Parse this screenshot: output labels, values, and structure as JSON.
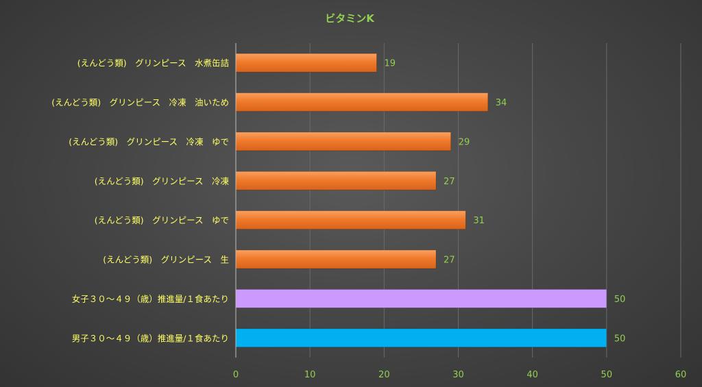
{
  "chart_data": {
    "type": "bar",
    "orientation": "horizontal",
    "title": "ビタミンK",
    "categories": [
      "(えんどう類)　グリンピース　水煮缶詰",
      "(えんどう類)　グリンピース　冷凍　油いため",
      "(えんどう類)　グリンピース　冷凍　ゆで",
      "(えんどう類)　グリンピース　冷凍",
      "(えんどう類)　グリンピース　ゆで",
      "(えんどう類)　グリンピース　生",
      "女子３０～４９（歳）推進量/１食あたり",
      "男子３０～４９（歳）推進量/１食あたり"
    ],
    "values": [
      19,
      34,
      29,
      27,
      31,
      27,
      50,
      50
    ],
    "bar_colors": [
      "#f07b2c",
      "#f07b2c",
      "#f07b2c",
      "#f07b2c",
      "#f07b2c",
      "#f07b2c",
      "#cc99ff",
      "#00b0f0"
    ],
    "xlim": [
      0,
      60
    ],
    "xticks": [
      0,
      10,
      20,
      30,
      40,
      50,
      60
    ],
    "grid": true,
    "legend": "none",
    "colors": {
      "title": "#92d050",
      "category_label": "#ffff66",
      "tick_label": "#92d050",
      "data_label": "#92d050",
      "gridline": "#6a6a6a",
      "axis_line": "#bfbfbf"
    }
  }
}
